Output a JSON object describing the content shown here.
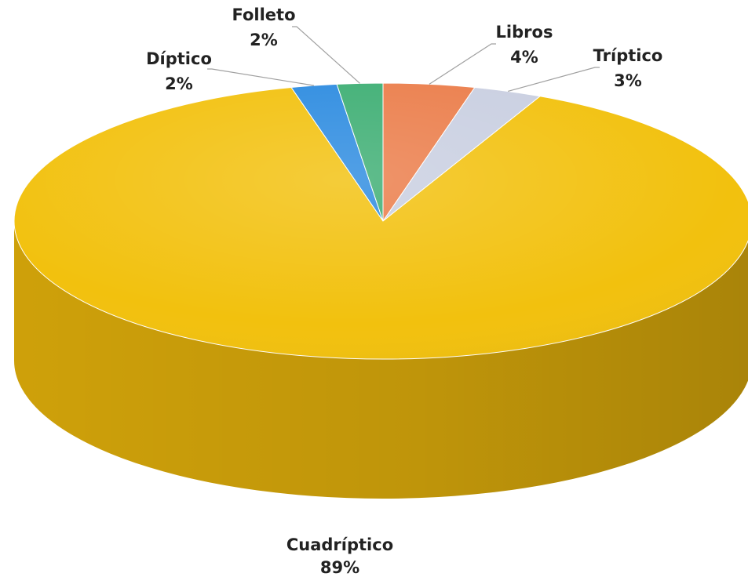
{
  "chart_data": {
    "type": "pie",
    "title": "",
    "slices": [
      {
        "label": "Libros",
        "value": 4,
        "display": "4%",
        "color": "#EB7D4A"
      },
      {
        "label": "Tríptico",
        "value": 3,
        "display": "3%",
        "color": "#C9CFE1"
      },
      {
        "label": "Cuadríptico",
        "value": 89,
        "display": "89%",
        "color": "#F2C10E"
      },
      {
        "label": "Díptico",
        "value": 2,
        "display": "2%",
        "color": "#2C8BE0"
      },
      {
        "label": "Folleto",
        "value": 2,
        "display": "2%",
        "color": "#3DAE73"
      }
    ],
    "legend": "none"
  }
}
